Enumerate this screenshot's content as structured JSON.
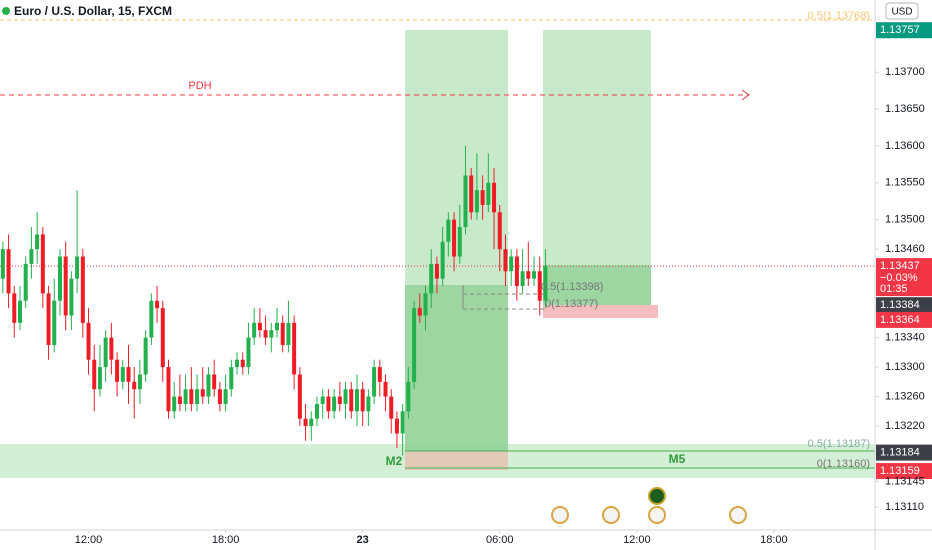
{
  "chart_data": {
    "type": "candlestick",
    "title": "Euro / U.S. Dollar, 15, FXCM",
    "currency": "USD",
    "up_color": "#22b14c",
    "down_color": "#ee1c25",
    "x": [
      0,
      1,
      2,
      3,
      4,
      5,
      6,
      7,
      8,
      9,
      10,
      11,
      12,
      13,
      14,
      15,
      16,
      17,
      18,
      19,
      20,
      21,
      22,
      23,
      24,
      25,
      26,
      27,
      28,
      29,
      30,
      31,
      32,
      33,
      34,
      35,
      36,
      37,
      38,
      39,
      40,
      41,
      42,
      43,
      44,
      45,
      46,
      47,
      48,
      49,
      50,
      51,
      52,
      53,
      54,
      55,
      56,
      57,
      58,
      59,
      60,
      61,
      62,
      63,
      64,
      65,
      66,
      67,
      68,
      69,
      70,
      71,
      72,
      73,
      74,
      75,
      76,
      77,
      78,
      79,
      80,
      81,
      82,
      83,
      84,
      85,
      86,
      87,
      88,
      89,
      90,
      91,
      92,
      93,
      94,
      95
    ],
    "open": [
      1.1342,
      1.1346,
      1.134,
      1.1336,
      1.1339,
      1.1344,
      1.1346,
      1.1348,
      1.134,
      1.1333,
      1.1339,
      1.1345,
      1.1337,
      1.1342,
      1.1345,
      1.1336,
      1.1331,
      1.1327,
      1.133,
      1.1334,
      1.1331,
      1.1328,
      1.133,
      1.1328,
      1.1327,
      1.1329,
      1.1334,
      1.1339,
      1.1338,
      1.133,
      1.1324,
      1.1326,
      1.1325,
      1.1327,
      1.1325,
      1.1327,
      1.1326,
      1.1329,
      1.1327,
      1.1325,
      1.1327,
      1.133,
      1.1331,
      1.133,
      1.1334,
      1.1336,
      1.1335,
      1.1334,
      1.1335,
      1.1336,
      1.1333,
      1.1336,
      1.1329,
      1.1323,
      1.1322,
      1.1323,
      1.1325,
      1.1326,
      1.1324,
      1.1326,
      1.1325,
      1.1327,
      1.1324,
      1.1327,
      1.1324,
      1.1326,
      1.133,
      1.1328,
      1.1326,
      1.1323,
      1.1321,
      1.1324,
      1.1328,
      1.1338,
      1.1337,
      1.134,
      1.1344,
      1.1342,
      1.1347,
      1.135,
      1.1345,
      1.1349,
      1.1356,
      1.1351,
      1.1354,
      1.1352,
      1.1355,
      1.1351,
      1.1346,
      1.1343,
      1.1345,
      1.1341,
      1.1343,
      1.1342,
      1.1343,
      1.1339
    ],
    "high": [
      1.1347,
      1.1348,
      1.1341,
      1.1341,
      1.1345,
      1.1349,
      1.1351,
      1.1349,
      1.1341,
      1.1342,
      1.1346,
      1.1347,
      1.1343,
      1.1354,
      1.1346,
      1.1338,
      1.1333,
      1.1333,
      1.1335,
      1.1336,
      1.1332,
      1.1331,
      1.1333,
      1.133,
      1.1331,
      1.1335,
      1.134,
      1.1341,
      1.1339,
      1.1331,
      1.1328,
      1.1329,
      1.1329,
      1.133,
      1.1329,
      1.133,
      1.133,
      1.1331,
      1.1328,
      1.1329,
      1.1331,
      1.1332,
      1.1332,
      1.1336,
      1.1338,
      1.1338,
      1.1337,
      1.1336,
      1.1338,
      1.1337,
      1.1339,
      1.1337,
      1.133,
      1.1325,
      1.1324,
      1.1326,
      1.1327,
      1.1327,
      1.1327,
      1.1328,
      1.1328,
      1.1328,
      1.1329,
      1.1328,
      1.1327,
      1.1331,
      1.1331,
      1.1329,
      1.1327,
      1.1324,
      1.1325,
      1.133,
      1.1339,
      1.134,
      1.1341,
      1.1346,
      1.1345,
      1.1349,
      1.1351,
      1.1351,
      1.1352,
      1.136,
      1.1357,
      1.1359,
      1.1356,
      1.1359,
      1.1357,
      1.1352,
      1.1348,
      1.1346,
      1.1346,
      1.1346,
      1.1347,
      1.1345,
      1.1345,
      1.1346
    ],
    "low": [
      1.134,
      1.1338,
      1.1334,
      1.1335,
      1.1338,
      1.1342,
      1.1344,
      1.1338,
      1.1331,
      1.1332,
      1.1337,
      1.1335,
      1.1335,
      1.134,
      1.1334,
      1.1329,
      1.1324,
      1.1326,
      1.1328,
      1.1329,
      1.1326,
      1.1327,
      1.1325,
      1.1323,
      1.1325,
      1.1328,
      1.1333,
      1.1336,
      1.1328,
      1.1323,
      1.1323,
      1.1324,
      1.1324,
      1.1324,
      1.1324,
      1.1325,
      1.1325,
      1.1326,
      1.1324,
      1.1324,
      1.1326,
      1.1329,
      1.1329,
      1.1329,
      1.1333,
      1.1334,
      1.1333,
      1.1332,
      1.1334,
      1.1332,
      1.1332,
      1.1327,
      1.1322,
      1.132,
      1.132,
      1.1322,
      1.1323,
      1.1323,
      1.1323,
      1.1324,
      1.1323,
      1.1323,
      1.1322,
      1.1322,
      1.1322,
      1.1325,
      1.1326,
      1.1324,
      1.1321,
      1.1319,
      1.1318,
      1.1323,
      1.1327,
      1.1336,
      1.1335,
      1.1338,
      1.134,
      1.1341,
      1.1345,
      1.1343,
      1.1344,
      1.1348,
      1.135,
      1.135,
      1.135,
      1.1351,
      1.1346,
      1.1343,
      1.1341,
      1.1341,
      1.1339,
      1.134,
      1.1341,
      1.1341,
      1.1337,
      1.1338
    ],
    "close": [
      1.1346,
      1.134,
      1.1336,
      1.1339,
      1.1344,
      1.1346,
      1.1348,
      1.134,
      1.1333,
      1.1339,
      1.1345,
      1.1337,
      1.1342,
      1.1345,
      1.1336,
      1.1331,
      1.1327,
      1.133,
      1.1334,
      1.1331,
      1.1328,
      1.133,
      1.1328,
      1.1327,
      1.1329,
      1.1334,
      1.1339,
      1.1338,
      1.133,
      1.1324,
      1.1326,
      1.1325,
      1.1327,
      1.1325,
      1.1327,
      1.1326,
      1.1329,
      1.1327,
      1.1325,
      1.1327,
      1.133,
      1.1331,
      1.133,
      1.1334,
      1.1336,
      1.1335,
      1.1334,
      1.1335,
      1.1336,
      1.1333,
      1.1336,
      1.1329,
      1.1323,
      1.1322,
      1.1323,
      1.1325,
      1.1326,
      1.1324,
      1.1326,
      1.1325,
      1.1327,
      1.1324,
      1.1327,
      1.1324,
      1.1326,
      1.133,
      1.1328,
      1.1326,
      1.1323,
      1.1321,
      1.1324,
      1.1328,
      1.1338,
      1.1337,
      1.134,
      1.1344,
      1.1342,
      1.1347,
      1.135,
      1.1345,
      1.1349,
      1.1356,
      1.1351,
      1.1354,
      1.1352,
      1.1355,
      1.1351,
      1.1346,
      1.1343,
      1.1345,
      1.1341,
      1.1343,
      1.1342,
      1.1343,
      1.1339,
      1.13437
    ],
    "xlim": [
      -0.5,
      152.7
    ],
    "xticks": [
      {
        "value": 15,
        "label": "12:00"
      },
      {
        "value": 39,
        "label": "18:00"
      },
      {
        "value": 63,
        "label": "23"
      },
      {
        "value": 87,
        "label": "06:00"
      },
      {
        "value": 111,
        "label": "12:00"
      },
      {
        "value": 135,
        "label": "18:00"
      }
    ],
    "ylim": [
      1.13079,
      1.13798
    ],
    "yticks": [
      {
        "value": 1.137,
        "label": "1.13700"
      },
      {
        "value": 1.1365,
        "label": "1.13650"
      },
      {
        "value": 1.136,
        "label": "1.13600"
      },
      {
        "value": 1.1355,
        "label": "1.13550"
      },
      {
        "value": 1.135,
        "label": "1.13500"
      },
      {
        "value": 1.1346,
        "label": "1.13460"
      },
      {
        "value": 1.1334,
        "label": "1.13340"
      },
      {
        "value": 1.133,
        "label": "1.13300"
      },
      {
        "value": 1.1326,
        "label": "1.13260"
      },
      {
        "value": 1.1322,
        "label": "1.13220"
      },
      1.13145,
      {
        "value": 1.1311,
        "label": "1.13110"
      }
    ],
    "price_badges": [
      {
        "value": 1.13757,
        "color": "#089981"
      },
      {
        "value": 1.13437,
        "color": "#f23645",
        "change": "−0.03%",
        "countdown": "01:35"
      },
      {
        "value": 1.13384,
        "color": "#3d3f47"
      },
      {
        "value": 1.13364,
        "color": "#f23645"
      },
      {
        "value": 1.13184,
        "color": "#3d3f47"
      },
      {
        "value": 1.13159,
        "color": "#f23645"
      }
    ],
    "annotations": {
      "pdh": "PDH",
      "fib_top": "0.5(1.13768)",
      "fib_mid_half": "0.5(1.13398)",
      "fib_mid_zero": "0(1.13377)",
      "fib_low_half": "0.5(1.13187)",
      "fib_low_zero": "0(1.13160)",
      "m2": "M2",
      "m5": "M5"
    }
  }
}
